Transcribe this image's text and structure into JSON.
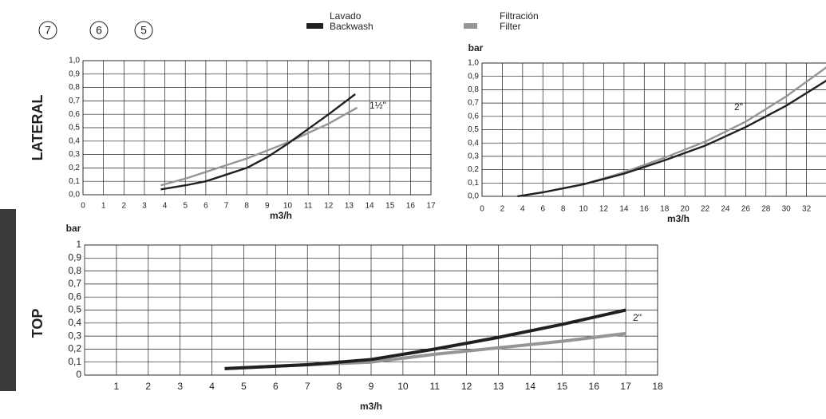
{
  "header": {
    "markers": [
      "7",
      "6",
      "5"
    ]
  },
  "chart_data": [
    {
      "type": "line",
      "title": "LATERAL",
      "xlabel": "m3/h",
      "annotation": "1½\"",
      "xlim": [
        0,
        17
      ],
      "ylim": [
        0,
        1
      ],
      "xticks": [
        0,
        1,
        2,
        3,
        4,
        5,
        6,
        7,
        8,
        9,
        10,
        11,
        12,
        13,
        14,
        15,
        16,
        17
      ],
      "yticks": [
        {
          "value": 0,
          "label": "0,0"
        },
        {
          "value": 0.1,
          "label": "0,1"
        },
        {
          "value": 0.2,
          "label": "0,2"
        },
        {
          "value": 0.3,
          "label": "0,3"
        },
        {
          "value": 0.4,
          "label": "0,4"
        },
        {
          "value": 0.5,
          "label": "0,5"
        },
        {
          "value": 0.6,
          "label": "0,6"
        },
        {
          "value": 0.7,
          "label": "0,7"
        },
        {
          "value": 0.8,
          "label": "0,8"
        },
        {
          "value": 0.9,
          "label": "0,9"
        },
        {
          "value": 1,
          "label": "1,0"
        }
      ],
      "grid": true,
      "series": [
        {
          "name": "Lavado Backwash",
          "color": "#231f20",
          "x": [
            3.8,
            5,
            6,
            7,
            8,
            9,
            10,
            11,
            12,
            13.3
          ],
          "values": [
            0.04,
            0.07,
            0.1,
            0.15,
            0.2,
            0.28,
            0.38,
            0.49,
            0.6,
            0.75
          ]
        },
        {
          "name": "Filtración Filter",
          "color": "#939598",
          "x": [
            3.8,
            5,
            6,
            7,
            8,
            9,
            10,
            11,
            12,
            13.4
          ],
          "values": [
            0.07,
            0.12,
            0.17,
            0.22,
            0.27,
            0.33,
            0.39,
            0.46,
            0.53,
            0.65
          ]
        }
      ]
    },
    {
      "type": "line",
      "ylabel": "bar",
      "xlabel": "m3/h",
      "annotation": "2\"",
      "xlim": [
        0,
        34
      ],
      "ylim": [
        0,
        1
      ],
      "xticks": [
        0,
        2,
        4,
        6,
        8,
        10,
        12,
        14,
        16,
        18,
        20,
        22,
        24,
        26,
        28,
        30,
        32
      ],
      "yticks": [
        {
          "value": 0,
          "label": "0,0"
        },
        {
          "value": 0.1,
          "label": "0,1"
        },
        {
          "value": 0.2,
          "label": "0,2"
        },
        {
          "value": 0.3,
          "label": "0,3"
        },
        {
          "value": 0.4,
          "label": "0,4"
        },
        {
          "value": 0.5,
          "label": "0,5"
        },
        {
          "value": 0.6,
          "label": "0,6"
        },
        {
          "value": 0.7,
          "label": "0,7"
        },
        {
          "value": 0.8,
          "label": "0,8"
        },
        {
          "value": 0.9,
          "label": "0,9"
        },
        {
          "value": 1,
          "label": "1,0"
        }
      ],
      "grid": true,
      "series": [
        {
          "color": "#231f20",
          "x": [
            3.5,
            6,
            10,
            14,
            18,
            22,
            26,
            30,
            34
          ],
          "values": [
            0,
            0.03,
            0.09,
            0.17,
            0.27,
            0.38,
            0.52,
            0.68,
            0.87
          ]
        },
        {
          "color": "#939598",
          "x": [
            3.5,
            6,
            10,
            14,
            18,
            22,
            26,
            30,
            34
          ],
          "values": [
            0,
            0.03,
            0.09,
            0.18,
            0.29,
            0.41,
            0.56,
            0.75,
            0.97
          ]
        }
      ]
    },
    {
      "type": "line",
      "title": "TOP",
      "ylabel": "bar",
      "xlabel": "m3/h",
      "annotation": "2\"",
      "xlim": [
        0,
        18
      ],
      "ylim": [
        0,
        1
      ],
      "xticks": [
        1,
        2,
        3,
        4,
        5,
        6,
        7,
        8,
        9,
        10,
        11,
        12,
        13,
        14,
        15,
        16,
        17,
        18
      ],
      "yticks": [
        0,
        {
          "value": 0.1,
          "label": "0,1"
        },
        {
          "value": 0.2,
          "label": "0,2"
        },
        {
          "value": 0.3,
          "label": "0,3"
        },
        {
          "value": 0.4,
          "label": "0,4"
        },
        {
          "value": 0.5,
          "label": "0,5"
        },
        {
          "value": 0.6,
          "label": "0,6"
        },
        {
          "value": 0.7,
          "label": "0,7"
        },
        {
          "value": 0.8,
          "label": "0,8"
        },
        {
          "value": 0.9,
          "label": "0,9"
        },
        1
      ],
      "grid": true,
      "series": [
        {
          "color": "#231f20",
          "x": [
            4.4,
            7,
            9,
            11,
            13,
            15,
            17
          ],
          "values": [
            0.05,
            0.08,
            0.12,
            0.2,
            0.29,
            0.39,
            0.5
          ]
        },
        {
          "color": "#939598",
          "x": [
            4.4,
            7,
            9,
            11,
            13,
            15,
            17
          ],
          "values": [
            0.05,
            0.08,
            0.1,
            0.16,
            0.21,
            0.26,
            0.32
          ]
        }
      ]
    }
  ]
}
